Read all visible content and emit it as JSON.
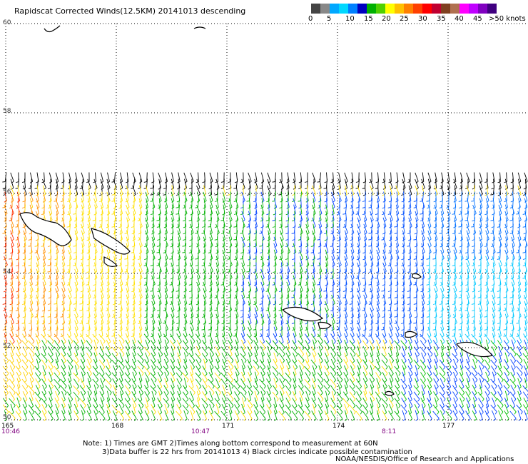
{
  "title": "Rapidscat Corrected Winds(12.5KM) 20141013 descending",
  "legend": {
    "colors": [
      "#444444",
      "#888888",
      "#00a8ff",
      "#00d8ff",
      "#0080ff",
      "#0000c0",
      "#00b000",
      "#50d000",
      "#ffff00",
      "#ffc000",
      "#ff8000",
      "#ff4000",
      "#ff0000",
      "#c00030",
      "#804020",
      "#b07050",
      "#ff00ff",
      "#c000ff",
      "#8000c0",
      "#400080"
    ],
    "labels": [
      "0",
      "5",
      "10",
      "15",
      "20",
      "25",
      "30",
      "35",
      "40",
      "45",
      ">50 knots"
    ]
  },
  "map": {
    "lat_labels": [
      "60",
      "58",
      "56",
      "54",
      "52",
      "50"
    ],
    "lon_labels": [
      "165",
      "168",
      "171",
      "174",
      "177"
    ],
    "time_labels": [
      "10:46",
      "10:47",
      "8:11"
    ]
  },
  "note": {
    "line1": "Note: 1) Times are GMT 2)Times along bottom correspond to measurement at 60N",
    "line2": "3)Data buffer is 22 hrs from 20141013 4) Black circles indicate possible contamination"
  },
  "credit": "NOAA/NESDIS/Office of Research and Applications"
}
